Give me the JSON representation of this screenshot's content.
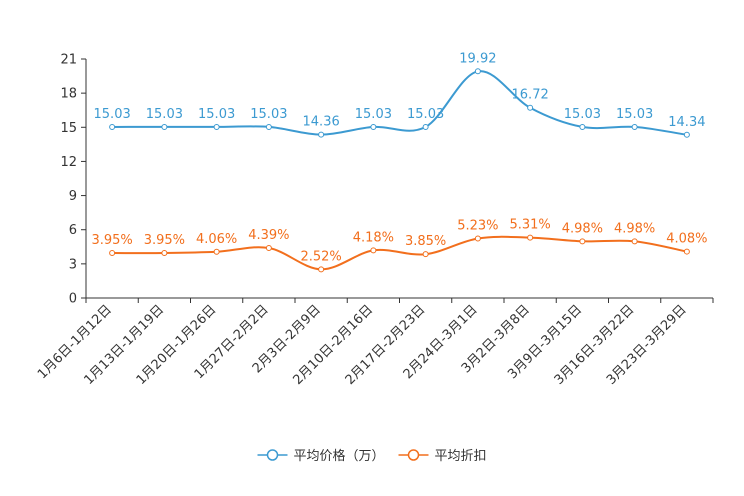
{
  "chart_data": {
    "type": "line",
    "categories": [
      "1月6日-1月12日",
      "1月13日-1月19日",
      "1月20日-1月26日",
      "1月27日-2月2日",
      "2月3日-2月9日",
      "2月10日-2月16日",
      "2月17日-2月23日",
      "2月24日-3月1日",
      "3月2日-3月8日",
      "3月9日-3月15日",
      "3月16日-3月22日",
      "3月23日-3月29日"
    ],
    "ylim": [
      0,
      21
    ],
    "yticks": [
      0,
      3,
      6,
      9,
      12,
      15,
      18,
      21
    ],
    "grid": false,
    "legend_position": "bottom-center",
    "series": [
      {
        "name": "平均价格（万）",
        "color": "#3c9ad1",
        "values": [
          15.03,
          15.03,
          15.03,
          15.03,
          14.36,
          15.03,
          15.03,
          19.92,
          16.72,
          15.03,
          15.03,
          14.34
        ],
        "labels": [
          "15.03",
          "15.03",
          "15.03",
          "15.03",
          "14.36",
          "15.03",
          "15.03",
          "19.92",
          "16.72",
          "15.03",
          "15.03",
          "14.34"
        ]
      },
      {
        "name": "平均折扣",
        "color": "#f26f1d",
        "values": [
          3.95,
          3.95,
          4.06,
          4.39,
          2.52,
          4.18,
          3.85,
          5.23,
          5.31,
          4.98,
          4.98,
          4.08
        ],
        "labels": [
          "3.95%",
          "3.95%",
          "4.06%",
          "4.39%",
          "2.52%",
          "4.18%",
          "3.85%",
          "5.23%",
          "5.31%",
          "4.98%",
          "4.98%",
          "4.08%"
        ]
      }
    ]
  }
}
